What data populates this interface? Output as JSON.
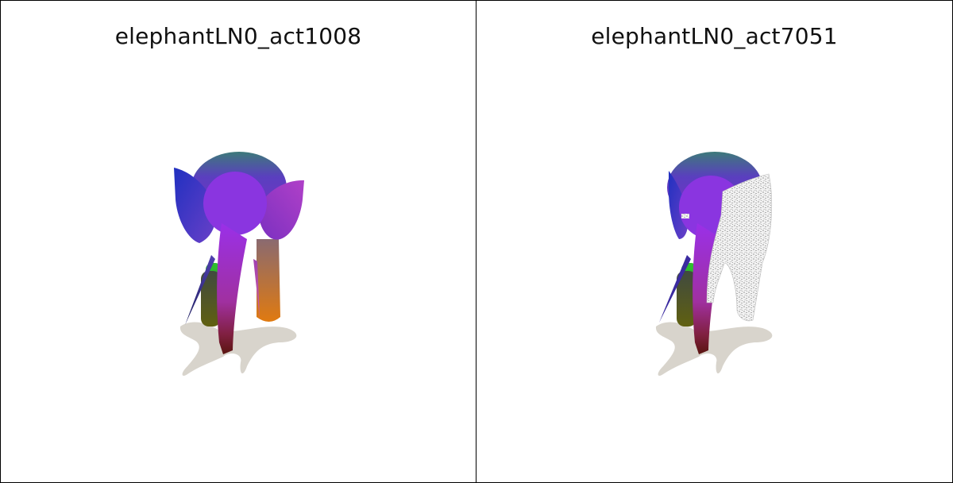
{
  "panels": [
    {
      "title": "elephantLN0_act1008",
      "model": "elephant-mesh-full-color"
    },
    {
      "title": "elephantLN0_act7051",
      "model": "elephant-mesh-partial-highlight"
    }
  ]
}
